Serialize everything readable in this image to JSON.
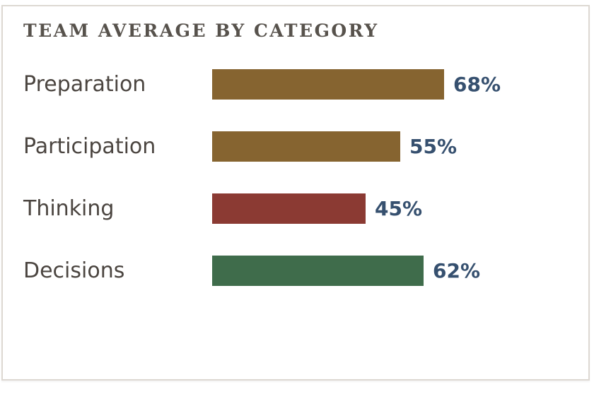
{
  "card": {
    "title": "TEAM AVERAGE BY CATEGORY"
  },
  "chart_data": {
    "type": "bar",
    "orientation": "horizontal",
    "title": "TEAM AVERAGE BY CATEGORY",
    "categories": [
      "Preparation",
      "Participation",
      "Thinking",
      "Decisions"
    ],
    "values": [
      68,
      55,
      45,
      62
    ],
    "unit": "%",
    "value_labels": [
      "68%",
      "55%",
      "45%",
      "62%"
    ],
    "bar_colors": [
      "#866430",
      "#866430",
      "#8B3A33",
      "#3F6C4B"
    ],
    "xlim": [
      0,
      100
    ],
    "grid": false,
    "legend": "none"
  },
  "colors": {
    "value_label": "#36506F",
    "category_label": "#4B4540",
    "title_text": "#57524C",
    "card_border": "#DDD8D2",
    "background": "#FFFFFF"
  }
}
